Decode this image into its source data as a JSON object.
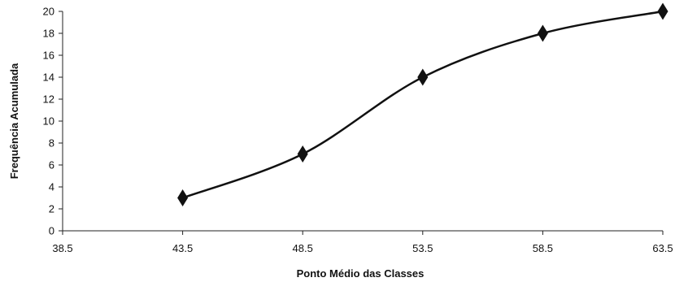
{
  "chart_data": {
    "type": "line",
    "title": "",
    "xlabel": "Ponto Médio das Classes",
    "ylabel": "Frequência Acumulada",
    "xlim": [
      38.5,
      63.5
    ],
    "ylim": [
      0,
      20
    ],
    "x_ticks": [
      "38.5",
      "43.5",
      "48.5",
      "53.5",
      "58.5",
      "63.5"
    ],
    "y_ticks": [
      "0",
      "2",
      "4",
      "6",
      "8",
      "10",
      "12",
      "14",
      "16",
      "18",
      "20"
    ],
    "grid": false,
    "legend": "none",
    "smooth": true,
    "marker": "diamond",
    "line_color": "#111111",
    "series": [
      {
        "x": [
          43.5,
          48.5,
          53.5,
          58.5,
          63.5
        ],
        "values": [
          3,
          7,
          14,
          18,
          20
        ]
      }
    ]
  }
}
